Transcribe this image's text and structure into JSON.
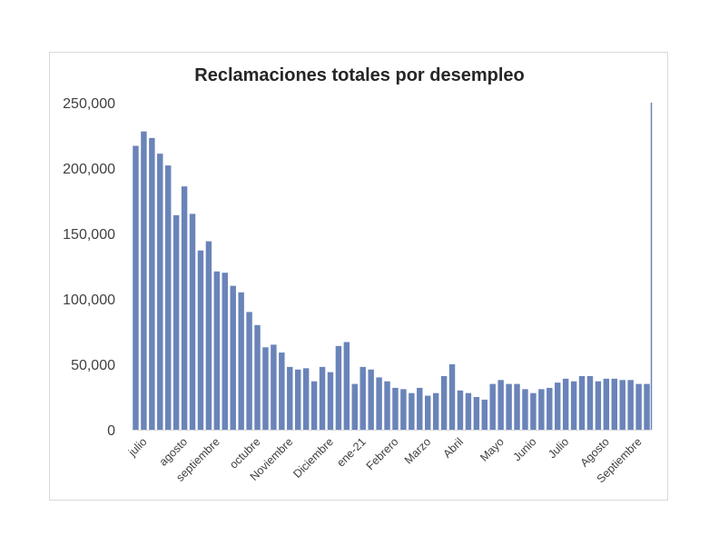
{
  "chart_data": {
    "type": "bar",
    "title": "Reclamaciones totales por desempleo",
    "xlabel": "",
    "ylabel": "",
    "ylim": [
      0,
      250000
    ],
    "y_ticks": [
      "0",
      "50,000",
      "100,000",
      "150,000",
      "200,000",
      "250,000"
    ],
    "y_tick_values": [
      0,
      50000,
      100000,
      150000,
      200000,
      250000
    ],
    "x_labels": [
      {
        "index": 1,
        "label": "julio"
      },
      {
        "index": 6,
        "label": "agosto"
      },
      {
        "index": 10,
        "label": "septiembre"
      },
      {
        "index": 15,
        "label": "octubre"
      },
      {
        "index": 19,
        "label": "Noviembre"
      },
      {
        "index": 24,
        "label": "Diciembre"
      },
      {
        "index": 28,
        "label": "ene-21"
      },
      {
        "index": 32,
        "label": "Febrero"
      },
      {
        "index": 36,
        "label": "Marzo"
      },
      {
        "index": 40,
        "label": "Abril"
      },
      {
        "index": 45,
        "label": "Mayo"
      },
      {
        "index": 49,
        "label": "Junio"
      },
      {
        "index": 53,
        "label": "Julio"
      },
      {
        "index": 58,
        "label": "Agosto"
      },
      {
        "index": 62,
        "label": "Septiembre"
      }
    ],
    "values": [
      217000,
      228000,
      223000,
      211000,
      202000,
      164000,
      186000,
      165000,
      137000,
      144000,
      121000,
      120000,
      110000,
      105000,
      90000,
      80000,
      63000,
      65000,
      59000,
      48000,
      46000,
      47000,
      37000,
      48000,
      44000,
      64000,
      67000,
      35000,
      48000,
      46000,
      40000,
      37000,
      32000,
      31000,
      28000,
      32000,
      26000,
      28000,
      41000,
      50000,
      30000,
      28000,
      25000,
      23000,
      35000,
      38000,
      35000,
      35000,
      31000,
      28000,
      31000,
      32000,
      36000,
      39000,
      37000,
      41000,
      41000,
      37000,
      39000,
      39000,
      38000,
      38000,
      35000,
      35000
    ],
    "bar_color": "#6a84b9",
    "grid": false,
    "legend": "none"
  }
}
